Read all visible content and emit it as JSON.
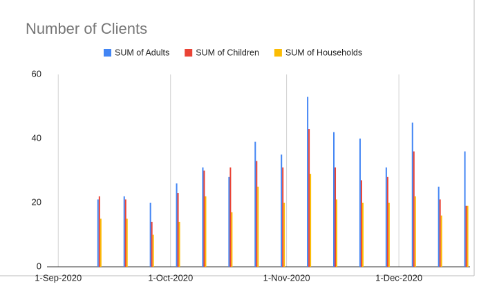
{
  "chart_data": {
    "type": "bar",
    "title": "Number of Clients",
    "x": [
      "2020-09-12",
      "2020-09-19",
      "2020-09-26",
      "2020-10-03",
      "2020-10-10",
      "2020-10-17",
      "2020-10-24",
      "2020-10-31",
      "2020-11-07",
      "2020-11-14",
      "2020-11-21",
      "2020-11-28",
      "2020-12-05",
      "2020-12-12",
      "2020-12-19"
    ],
    "series": [
      {
        "name": "SUM of Adults",
        "color": "#4285f4",
        "values": [
          21,
          22,
          20,
          26,
          31,
          28,
          39,
          35,
          53,
          42,
          40,
          31,
          45,
          25,
          36
        ]
      },
      {
        "name": "SUM of Children",
        "color": "#ea4335",
        "values": [
          22,
          21,
          14,
          23,
          30,
          31,
          33,
          31,
          43,
          31,
          27,
          28,
          36,
          21,
          19
        ]
      },
      {
        "name": "SUM of Households",
        "color": "#fbbc04",
        "values": [
          15,
          15,
          10,
          14,
          22,
          17,
          25,
          20,
          29,
          21,
          20,
          20,
          22,
          16,
          19
        ]
      }
    ],
    "xlim": [
      "2020-08-29",
      "2020-12-20"
    ],
    "xticks": [
      {
        "value": "2020-09-01",
        "label": "1-Sep-2020"
      },
      {
        "value": "2020-10-01",
        "label": "1-Oct-2020"
      },
      {
        "value": "2020-11-01",
        "label": "1-Nov-2020"
      },
      {
        "value": "2020-12-01",
        "label": "1-Dec-2020"
      }
    ],
    "ylim": [
      0,
      60
    ],
    "yticks": [
      0,
      20,
      40,
      60
    ],
    "grid": true,
    "legend": "top"
  }
}
